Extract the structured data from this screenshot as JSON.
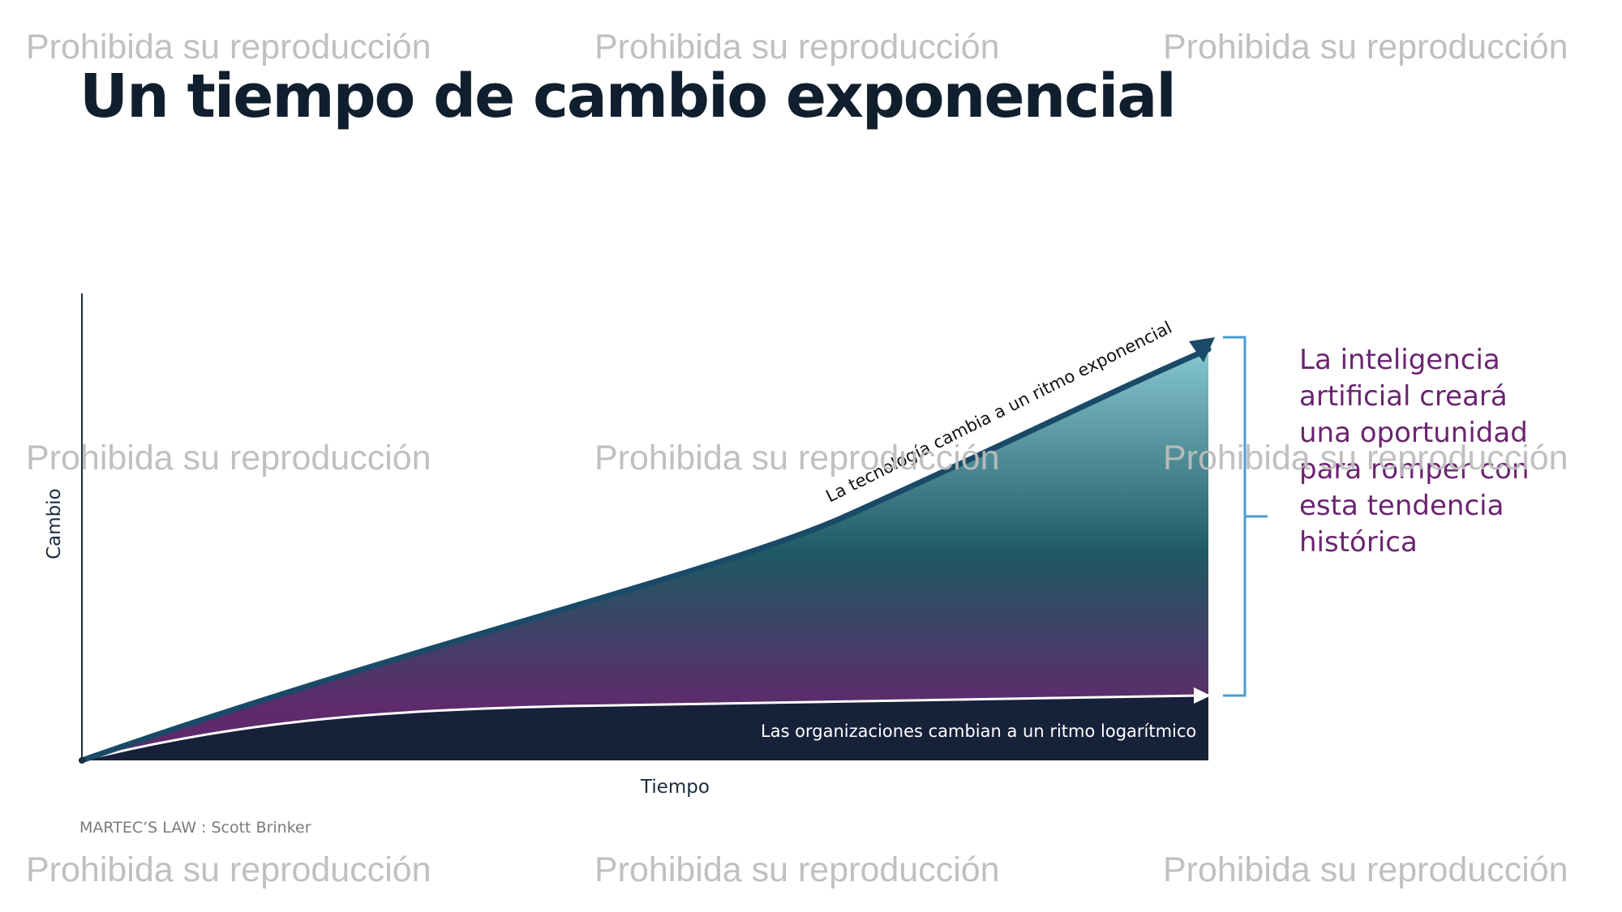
{
  "slide": {
    "title": "Un tiempo de cambio exponencial",
    "callout": "La inteligencia artificial creará una oportunidad para romper con esta tendencia histórica",
    "source": "MARTEC’S LAW : Scott Brinker",
    "watermark": "Prohibida su reproducción"
  },
  "chart_data": {
    "type": "area",
    "xlabel": "Tiempo",
    "ylabel": "Cambio",
    "series": [
      {
        "label": "La tecnología cambia a un ritmo exponencial",
        "curve": "exponential"
      },
      {
        "label": "Las organizaciones cambian a un ritmo logarítmico",
        "curve": "logarithmic"
      }
    ],
    "annotation": "La inteligencia artificial creará una oportunidad para romper con esta tendencia histórica",
    "colors": {
      "axis": "#1c2b3f",
      "tech_arrow": "#1a4a68",
      "org_fill": "#17213a",
      "grad_top": "#86c7cf",
      "grad_mid": "#1e5963",
      "grad_bottom": "#5f2a6c",
      "bracket": "#4a9ccf",
      "callout": "#6b2470"
    }
  }
}
